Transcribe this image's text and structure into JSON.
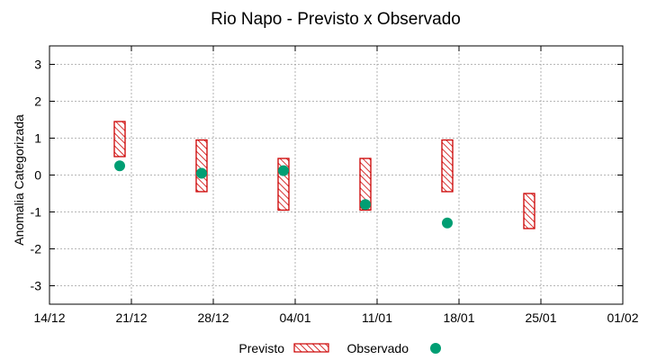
{
  "chart_data": {
    "type": "range-bar+scatter",
    "title": "Rio Napo - Previsto x Observado",
    "xlabel": "",
    "ylabel": "Anomalia Categorizada",
    "ylim": [
      -3.5,
      3.5
    ],
    "yticks": [
      "-3",
      "-2",
      "-1",
      "0",
      "1",
      "2",
      "3"
    ],
    "ytick_values": [
      -3,
      -2,
      -1,
      0,
      1,
      2,
      3
    ],
    "xlim": [
      "2014-12-14",
      "2015-02-01"
    ],
    "xticks": [
      "14/12",
      "21/12",
      "28/12",
      "04/01",
      "11/01",
      "18/01",
      "25/01",
      "01/02"
    ],
    "xtick_dates": [
      "2014-12-14",
      "2014-12-21",
      "2014-12-28",
      "2015-01-04",
      "2015-01-11",
      "2015-01-18",
      "2015-01-25",
      "2015-02-01"
    ],
    "grid": true,
    "legend_position": "bottom",
    "series": [
      {
        "name": "Previsto",
        "kind": "range",
        "color": "#cc0000",
        "points": [
          {
            "x": "2014-12-20",
            "low": 0.5,
            "high": 1.45
          },
          {
            "x": "2014-12-27",
            "low": -0.45,
            "high": 0.95
          },
          {
            "x": "2015-01-03",
            "low": -0.95,
            "high": 0.45
          },
          {
            "x": "2015-01-10",
            "low": -0.95,
            "high": 0.45
          },
          {
            "x": "2015-01-17",
            "low": -0.45,
            "high": 0.95
          },
          {
            "x": "2015-01-24",
            "low": -1.45,
            "high": -0.5
          }
        ]
      },
      {
        "name": "Observado",
        "kind": "points",
        "color": "#009e73",
        "points": [
          {
            "x": "2014-12-20",
            "y": 0.25
          },
          {
            "x": "2014-12-27",
            "y": 0.05
          },
          {
            "x": "2015-01-03",
            "y": 0.12
          },
          {
            "x": "2015-01-10",
            "y": -0.8
          },
          {
            "x": "2015-01-17",
            "y": -1.3
          }
        ]
      }
    ]
  }
}
